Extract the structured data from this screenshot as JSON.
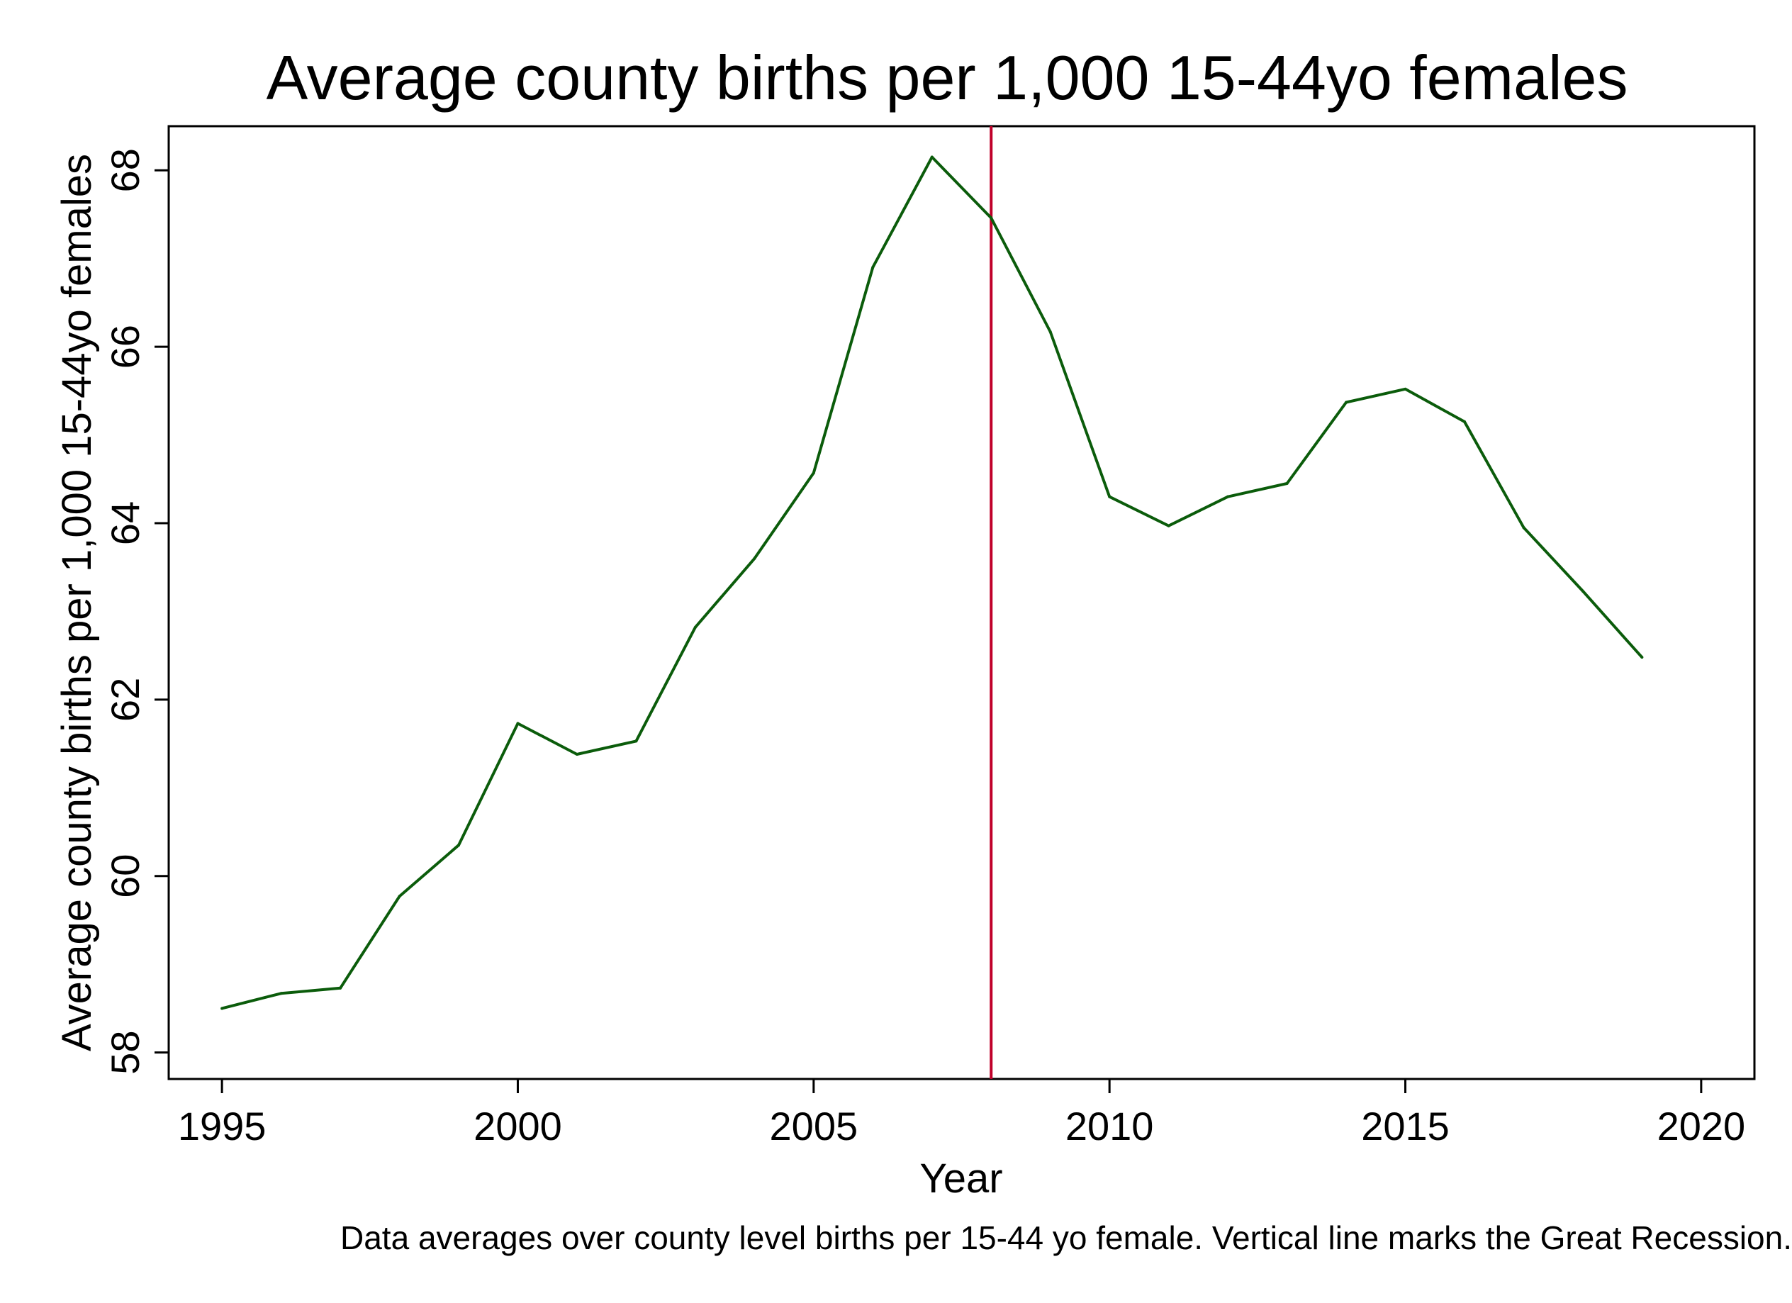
{
  "chart_data": {
    "type": "line",
    "title": "Average county births per 1,000 15-44yo females",
    "xlabel": "Year",
    "ylabel": "Average county births per 1,000 15-44yo females",
    "note": "Data averages over county level births per 15-44 yo female. Vertical line marks the Great Recession.",
    "xlim": [
      1994.1,
      2020.9
    ],
    "ylim": [
      57.7,
      68.5
    ],
    "x_ticks": [
      1995,
      2000,
      2005,
      2010,
      2015,
      2020
    ],
    "y_ticks": [
      58,
      60,
      62,
      64,
      66,
      68
    ],
    "grid": false,
    "line_color": "#0b5c0b",
    "vline": {
      "x": 2008,
      "color": "#c0002a"
    },
    "series": [
      {
        "x": [
          1995,
          1996,
          1997,
          1998,
          1999,
          2000,
          2001,
          2002,
          2003,
          2004,
          2005,
          2006,
          2007,
          2008,
          2009,
          2010,
          2011,
          2012,
          2013,
          2014,
          2015,
          2016,
          2017,
          2018,
          2019
        ],
        "values": [
          58.5,
          58.67,
          58.73,
          59.77,
          60.35,
          61.73,
          61.38,
          61.53,
          62.82,
          63.6,
          64.57,
          66.9,
          68.15,
          67.46,
          66.17,
          64.3,
          63.97,
          64.3,
          64.45,
          65.37,
          65.52,
          65.15,
          63.95,
          63.23,
          62.48
        ]
      }
    ]
  }
}
